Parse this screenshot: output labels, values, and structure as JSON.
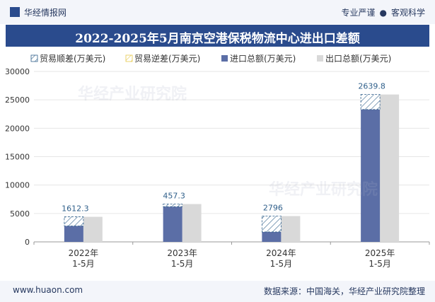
{
  "header": {
    "brand": "华经情报网",
    "tagline_left": "专业严谨",
    "tagline_right": "客观科学"
  },
  "footer": {
    "website": "www.huaon.com",
    "source": "数据来源：中国海关，华经产业研究院整理"
  },
  "watermark": "华经产业研究院",
  "colors": {
    "title_bg": "#2a4b8d",
    "import": "#5b6ea6",
    "export": "#d9d9d9",
    "surplus_hatch": "#2f5f8a",
    "deficit_hatch": "#e6c84a",
    "label": "#2f5f8a"
  },
  "chart_data": {
    "type": "bar",
    "title": "2022-2025年5月南京空港保税物流中心进出口差额",
    "categories": [
      "2022年\n1-5月",
      "2023年\n1-5月",
      "2024年\n1-5月",
      "2025年\n1-5月"
    ],
    "legend": [
      "贸易顺差(万美元)",
      "贸易逆差(万美元)",
      "进口总额(万美元)",
      "出口总额(万美元)"
    ],
    "series": [
      {
        "name": "进口总额(万美元)",
        "values": [
          2800,
          6200,
          1750,
          23300
        ]
      },
      {
        "name": "出口总额(万美元)",
        "values": [
          4412.3,
          6657.3,
          4546,
          25939.8
        ]
      },
      {
        "name": "贸易顺差(万美元)",
        "values": [
          1612.3,
          457.3,
          2796,
          2639.8
        ]
      },
      {
        "name": "贸易逆差(万美元)",
        "values": [
          0,
          0,
          0,
          0
        ]
      }
    ],
    "balance_labels": [
      "1612.3",
      "457.3",
      "2796",
      "2639.8"
    ],
    "yticks": [
      "0",
      "5000",
      "10000",
      "15000",
      "20000",
      "25000",
      "30000"
    ],
    "ylim": [
      0,
      30000
    ],
    "legend_position": "top"
  }
}
